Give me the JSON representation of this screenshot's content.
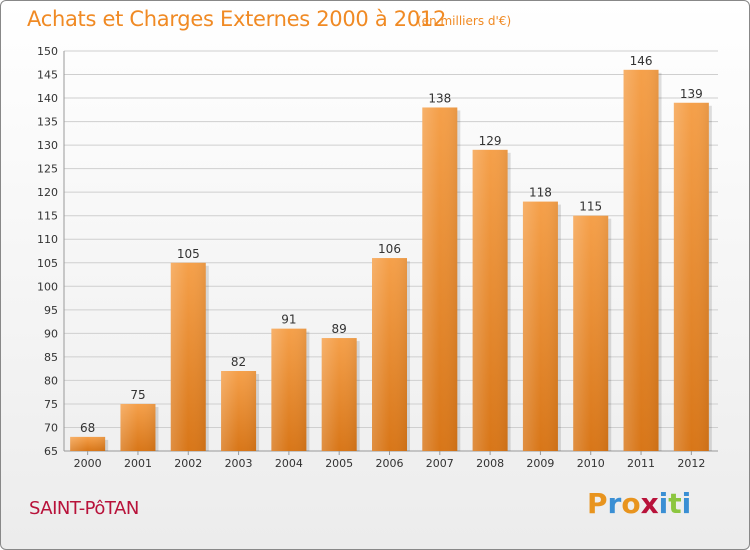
{
  "header": {
    "title": "Achats et Charges Externes 2000 à 2012",
    "subtitle": "(en milliers d'€)"
  },
  "footer": {
    "town": "SAINT-PôTAN",
    "logo": [
      "P",
      "r",
      "o",
      "x",
      "i",
      "t",
      "i"
    ],
    "logo_colors": [
      "#e8941e",
      "#3a8fd4",
      "#e8941e",
      "#b8123a",
      "#3a8fd4",
      "#8cc63f",
      "#3a8fd4"
    ]
  },
  "chart_data": {
    "type": "bar",
    "title": "Achats et Charges Externes 2000 à 2012",
    "subtitle": "(en milliers d'€)",
    "categories": [
      "2000",
      "2001",
      "2002",
      "2003",
      "2004",
      "2005",
      "2006",
      "2007",
      "2008",
      "2009",
      "2010",
      "2011",
      "2012"
    ],
    "values": [
      68,
      75,
      105,
      82,
      91,
      89,
      106,
      138,
      129,
      118,
      115,
      146,
      139
    ],
    "ylim": [
      65,
      150
    ],
    "yticks": [
      65,
      70,
      75,
      80,
      85,
      90,
      95,
      100,
      105,
      110,
      115,
      120,
      125,
      130,
      135,
      140,
      145,
      150
    ],
    "grid": true,
    "bar_color": "#f5a04a",
    "bar_color_dark": "#d87618"
  }
}
